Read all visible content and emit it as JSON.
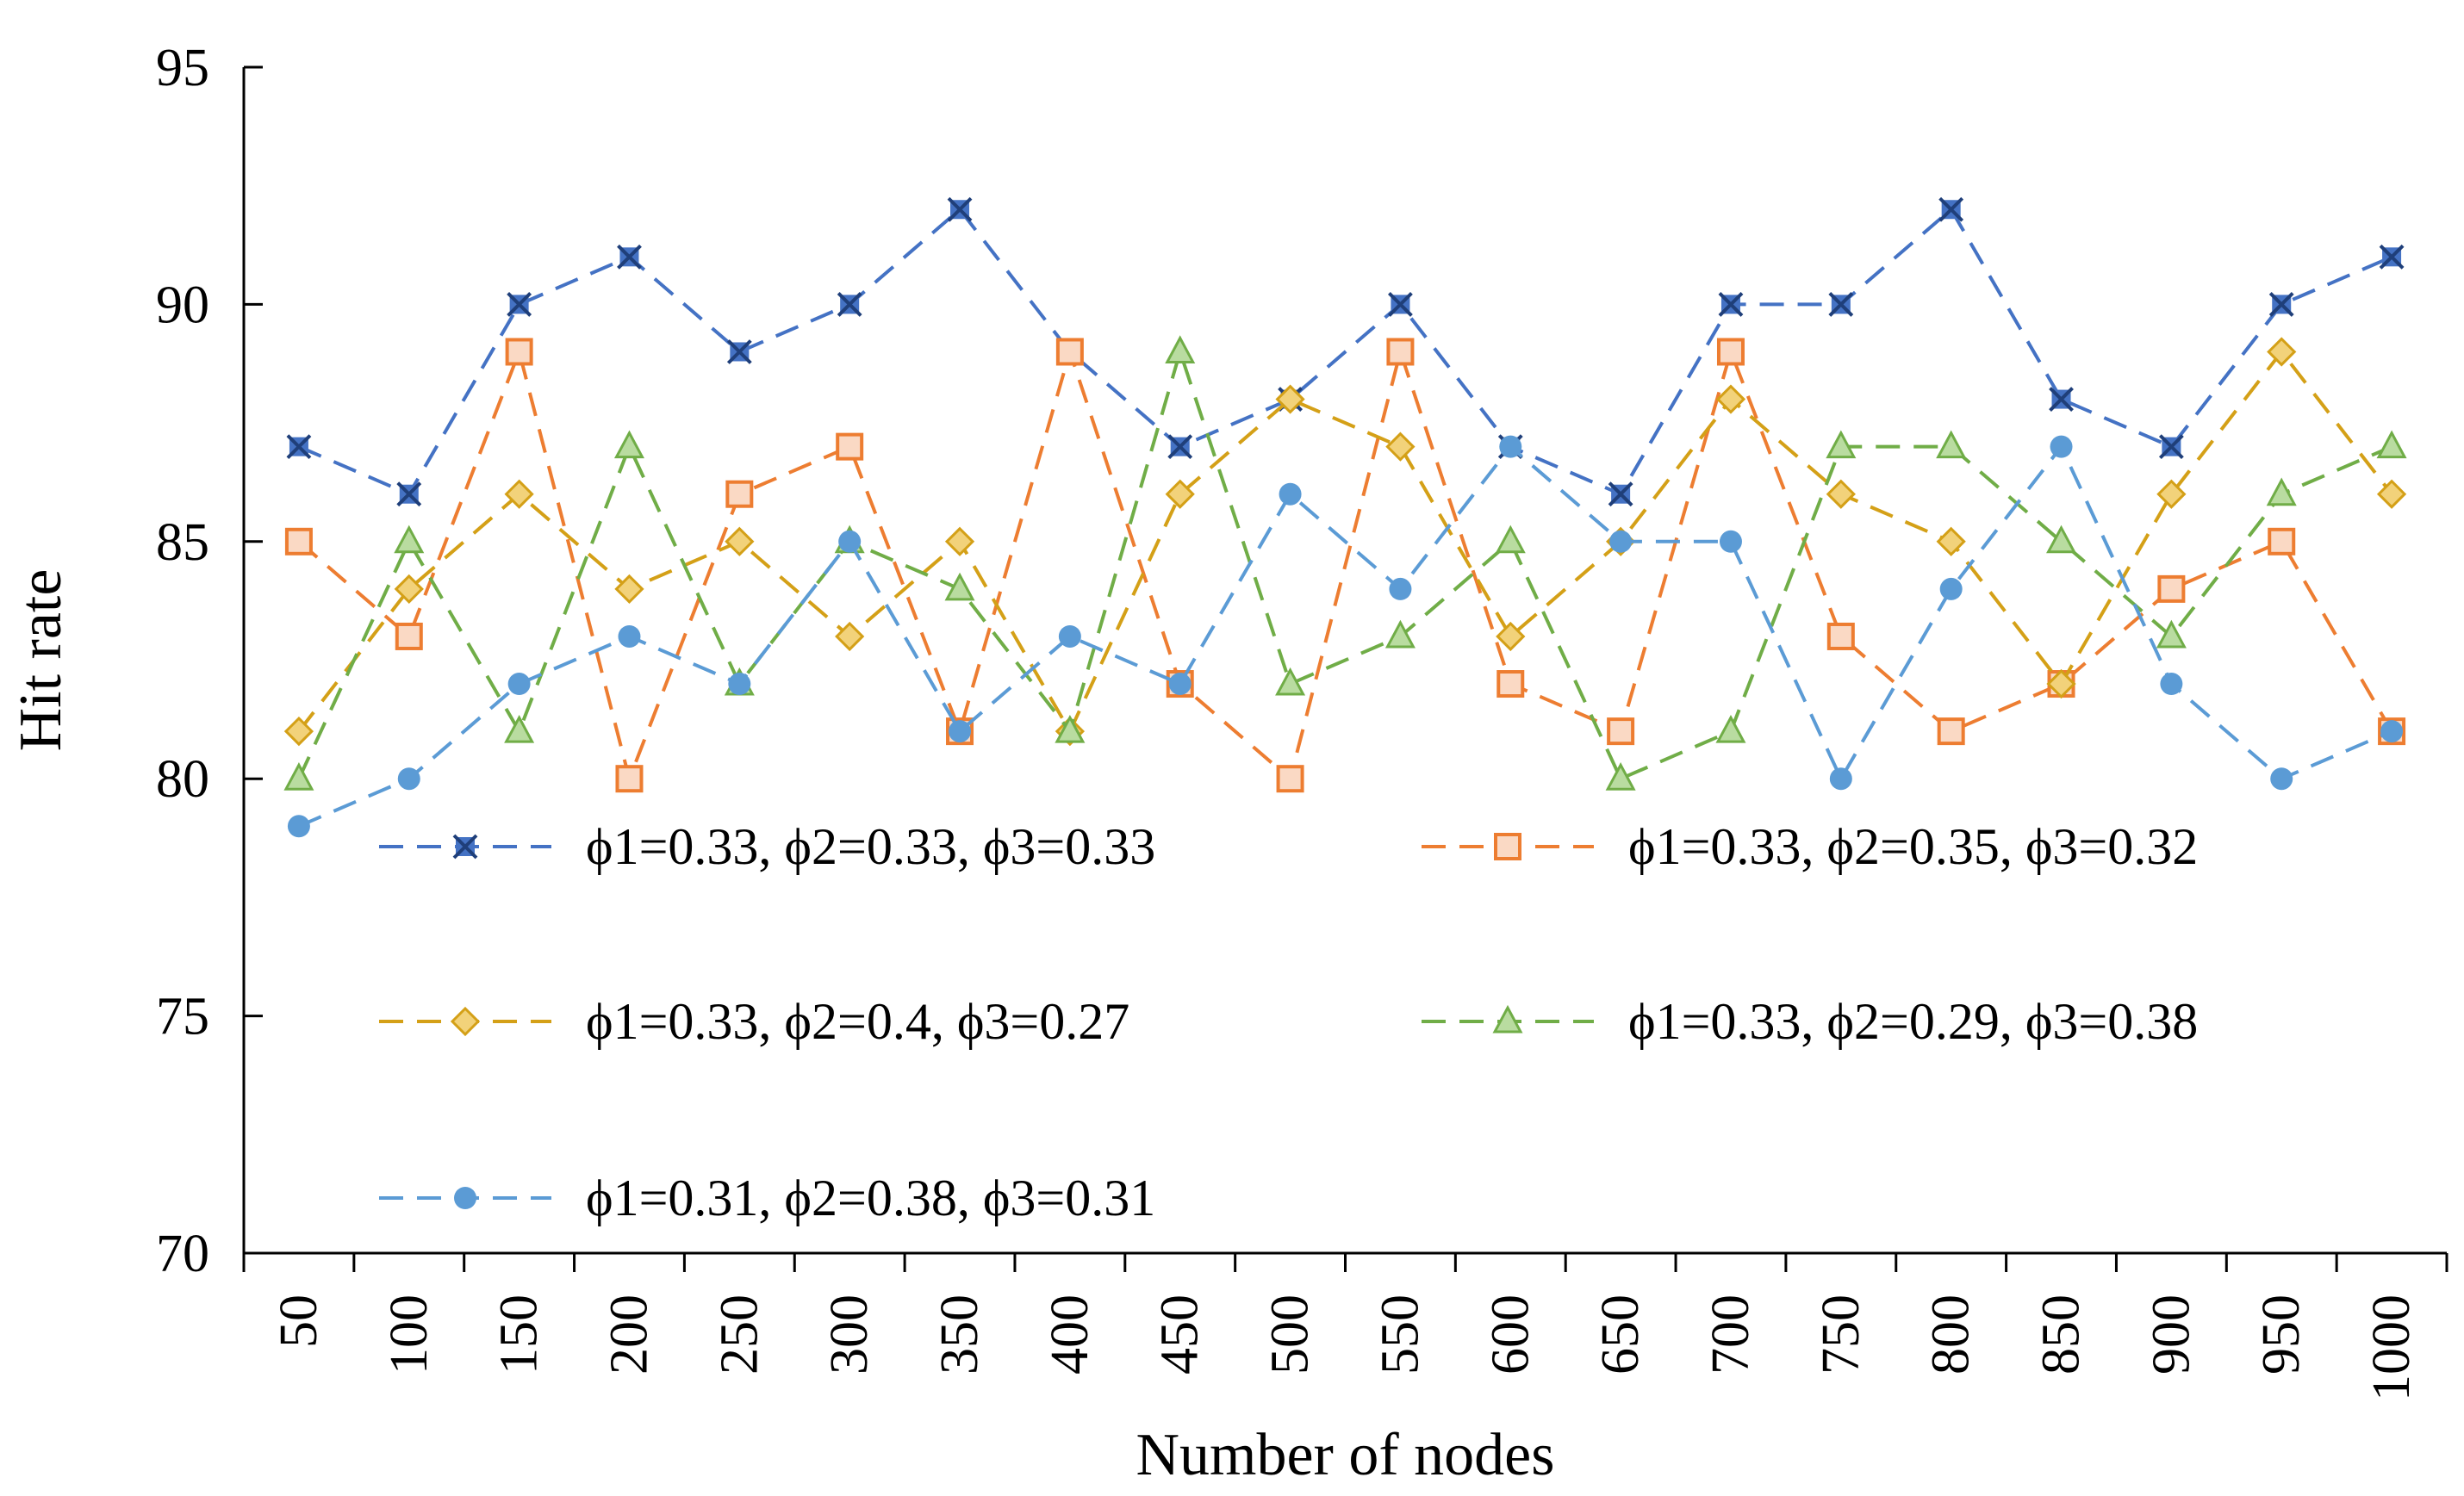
{
  "chart_data": {
    "type": "line",
    "title": "",
    "xlabel": "Number of nodes",
    "ylabel": "Hit rate",
    "ylim": [
      70,
      95
    ],
    "yticks": [
      70,
      75,
      80,
      85,
      90,
      95
    ],
    "grid": false,
    "legend_placement": "inside, lower-left (two columns)",
    "categories": [
      "50",
      "100",
      "150",
      "200",
      "250",
      "300",
      "350",
      "400",
      "450",
      "500",
      "550",
      "600",
      "650",
      "700",
      "750",
      "800",
      "850",
      "900",
      "950",
      "1000"
    ],
    "series": [
      {
        "name": "ϕ1=0.33, ϕ2=0.33, ϕ3=0.33",
        "color": "#4472C4",
        "marker": "asterisk",
        "values": [
          87,
          86,
          90,
          91,
          89,
          90,
          92,
          89,
          87,
          88,
          90,
          87,
          86,
          90,
          90,
          92,
          88,
          87,
          90,
          91
        ]
      },
      {
        "name": "ϕ1=0.33, ϕ2=0.35, ϕ3=0.32",
        "color": "#ED7D31",
        "marker": "square",
        "values": [
          85,
          83,
          89,
          80,
          86,
          87,
          81,
          89,
          82,
          80,
          89,
          82,
          81,
          89,
          83,
          81,
          82,
          84,
          85,
          81
        ]
      },
      {
        "name": "ϕ1=0.33, ϕ2=0.4, ϕ3=0.27",
        "color": "#D4A017",
        "marker": "diamond",
        "values": [
          81,
          84,
          86,
          84,
          85,
          83,
          85,
          81,
          86,
          88,
          87,
          83,
          85,
          88,
          86,
          85,
          82,
          86,
          89,
          86
        ]
      },
      {
        "name": "ϕ1=0.33, ϕ2=0.29, ϕ3=0.38",
        "color": "#70AD47",
        "marker": "triangle",
        "values": [
          80,
          85,
          81,
          87,
          82,
          85,
          84,
          81,
          89,
          82,
          83,
          85,
          80,
          81,
          87,
          87,
          85,
          83,
          86,
          87
        ]
      },
      {
        "name": "ϕ1=0.31, ϕ2=0.38, ϕ3=0.31",
        "color": "#5B9BD5",
        "marker": "circle",
        "values": [
          79,
          80,
          82,
          83,
          82,
          85,
          81,
          83,
          82,
          86,
          84,
          87,
          85,
          85,
          80,
          84,
          87,
          82,
          80,
          81
        ]
      }
    ]
  }
}
